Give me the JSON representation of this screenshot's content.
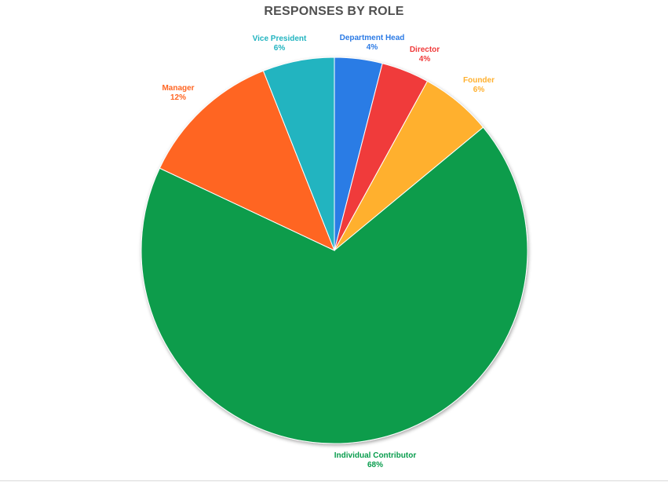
{
  "chart_data": {
    "type": "pie",
    "title": "RESPONSES BY ROLE",
    "slices": [
      {
        "label": "Department Head",
        "value": 4,
        "value_label": "4%",
        "color": "#2c7be5"
      },
      {
        "label": "Director",
        "value": 4,
        "value_label": "4%",
        "color": "#f03b3b"
      },
      {
        "label": "Founder",
        "value": 6,
        "value_label": "6%",
        "color": "#ffb02e"
      },
      {
        "label": "Individual Contributor",
        "value": 68,
        "value_label": "68%",
        "color": "#079c4c"
      },
      {
        "label": "Manager",
        "value": 12,
        "value_label": "12%",
        "color": "#ff6522"
      },
      {
        "label": "Vice President",
        "value": 6,
        "value_label": "6%",
        "color": "#22b4c0"
      }
    ],
    "start": "12 o'clock",
    "direction": "clockwise",
    "legend": "none"
  }
}
